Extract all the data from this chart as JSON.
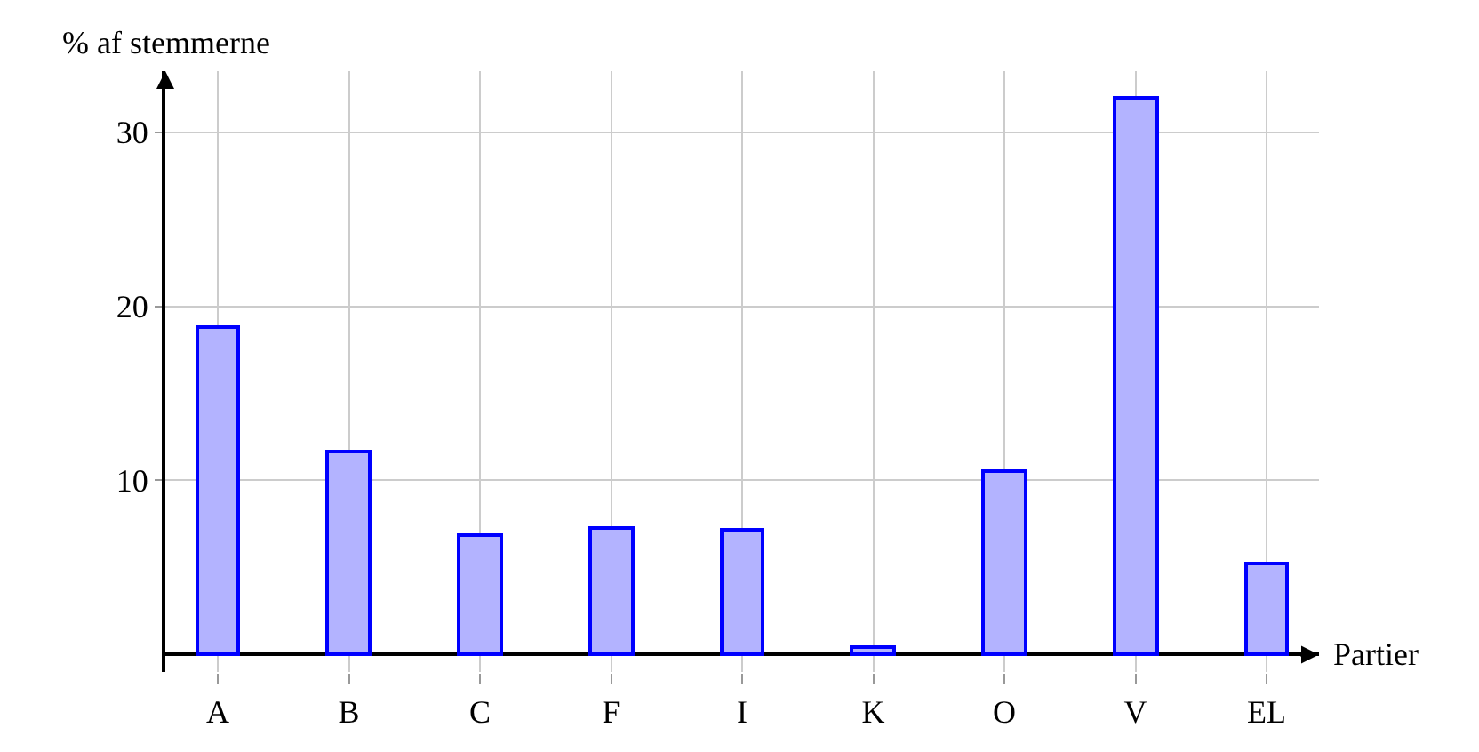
{
  "chart_data": {
    "type": "bar",
    "xlabel": "Partier",
    "ylabel": "% af stemmerne",
    "categories": [
      "A",
      "B",
      "C",
      "F",
      "I",
      "K",
      "O",
      "V",
      "EL"
    ],
    "values": [
      18.8,
      11.7,
      6.9,
      7.3,
      7.2,
      0.4,
      10.5,
      32.0,
      5.2
    ],
    "color": "#b3b3ff",
    "ylim": [
      -1,
      33.5
    ],
    "yticks": [
      10,
      20,
      30
    ],
    "grid": true
  }
}
